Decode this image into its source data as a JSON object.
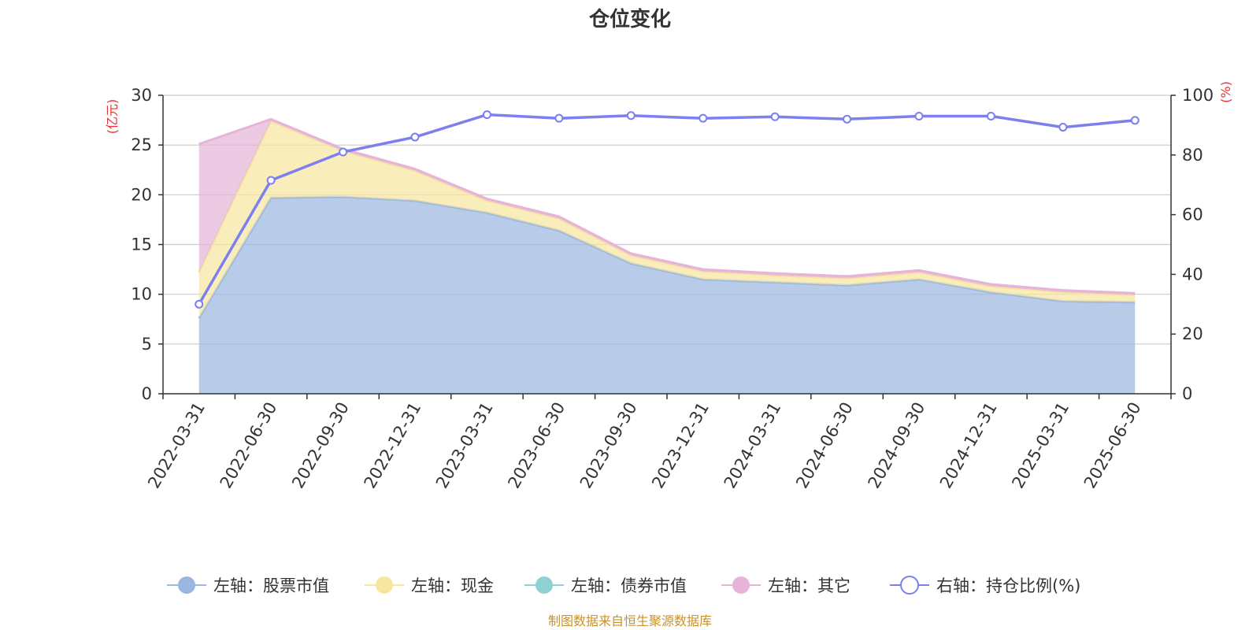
{
  "chart_data": {
    "type": "area",
    "title": "仓位变化",
    "left_axis_unit": "(亿元)",
    "right_axis_unit": "(%)",
    "source": "制图数据来自恒生聚源数据库",
    "categories": [
      "2022-03-31",
      "2022-06-30",
      "2022-09-30",
      "2022-12-31",
      "2023-03-31",
      "2023-06-30",
      "2023-09-30",
      "2023-12-31",
      "2024-03-31",
      "2024-06-30",
      "2024-09-30",
      "2024-12-31",
      "2025-03-31",
      "2025-06-30"
    ],
    "left_ylim": [
      0,
      30
    ],
    "left_ticks": [
      0,
      5,
      10,
      15,
      20,
      25,
      30
    ],
    "right_ylim": [
      0,
      100
    ],
    "right_ticks": [
      0,
      20,
      40,
      60,
      80,
      100
    ],
    "grid": true,
    "legend_position": "bottom",
    "stacked": true,
    "series": [
      {
        "name": "左轴：股票市值",
        "axis": "left",
        "kind": "area",
        "color": "#9ab7e0",
        "values": [
          7.6,
          19.7,
          19.8,
          19.4,
          18.2,
          16.4,
          13.1,
          11.5,
          11.2,
          10.9,
          11.5,
          10.2,
          9.3,
          9.2
        ]
      },
      {
        "name": "左轴：现金",
        "axis": "left",
        "kind": "area",
        "color": "#f7e5a0",
        "values": [
          4.6,
          7.7,
          4.6,
          3.0,
          1.2,
          1.2,
          0.8,
          0.8,
          0.7,
          0.7,
          0.7,
          0.6,
          0.9,
          0.7
        ]
      },
      {
        "name": "左轴：债券市值",
        "axis": "left",
        "kind": "area",
        "color": "#8fd1d3",
        "values": [
          0,
          0,
          0,
          0,
          0,
          0,
          0,
          0,
          0,
          0,
          0,
          0,
          0,
          0
        ]
      },
      {
        "name": "左轴：其它",
        "axis": "left",
        "kind": "area",
        "color": "#e6b4d9",
        "values": [
          12.9,
          0.2,
          0.2,
          0.2,
          0.2,
          0.2,
          0.2,
          0.2,
          0.2,
          0.2,
          0.2,
          0.2,
          0.2,
          0.2
        ]
      },
      {
        "name": "右轴：持仓比例(%)",
        "axis": "right",
        "kind": "line",
        "color": "#7b7ff0",
        "values": [
          30.0,
          71.5,
          81.0,
          86.0,
          93.5,
          92.3,
          93.2,
          92.3,
          92.8,
          92.0,
          93.0,
          93.0,
          89.3,
          91.6
        ]
      }
    ]
  }
}
